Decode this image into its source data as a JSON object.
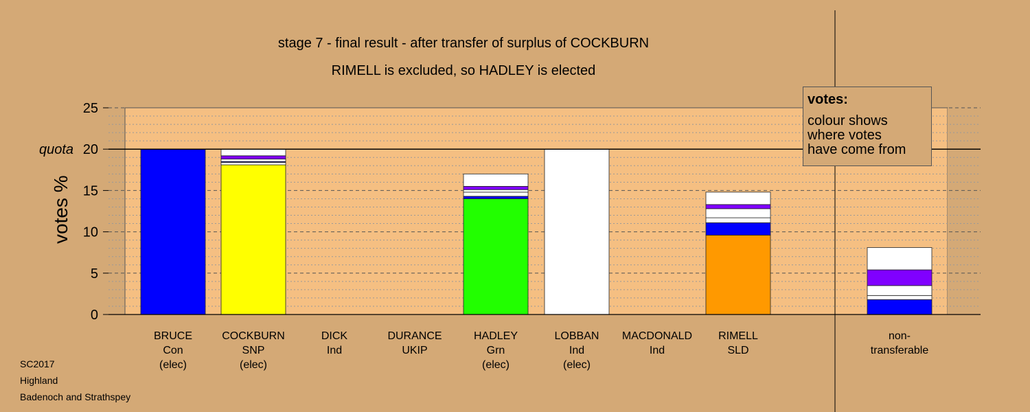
{
  "title_line1": "stage 7 - final result - after transfer of surplus of COCKBURN",
  "title_line2": "RIMELL is excluded, so HADLEY is elected",
  "legend": {
    "title": "votes:",
    "line1": "colour shows",
    "line2": "where votes",
    "line3": "have come from"
  },
  "footer": {
    "line1": "SC2017",
    "line2": "Highland",
    "line3": "Badenoch and Strathspey"
  },
  "chart_data": {
    "type": "bar",
    "stacked": true,
    "ylabel": "votes %",
    "ylim": [
      0,
      25
    ],
    "yticks": [
      "0",
      "5",
      "10",
      "15",
      "20",
      "25"
    ],
    "quota": {
      "label": "quota",
      "value": 20
    },
    "grid": true,
    "categories": [
      {
        "lines": [
          "BRUCE",
          "Con",
          "(elec)"
        ],
        "segments": [
          {
            "color": "#0000ff",
            "value": 20.0
          }
        ]
      },
      {
        "lines": [
          "COCKBURN",
          "SNP",
          "(elec)"
        ],
        "segments": [
          {
            "color": "#ffff00",
            "value": 18.1
          },
          {
            "color": "#ffffff",
            "value": 0.3
          },
          {
            "color": "#0000ff",
            "value": 0.1
          },
          {
            "color": "#ffffff",
            "value": 0.3
          },
          {
            "color": "#8000ff",
            "value": 0.4
          },
          {
            "color": "#ffffff",
            "value": 0.8
          }
        ]
      },
      {
        "lines": [
          "DICK",
          "Ind"
        ],
        "segments": []
      },
      {
        "lines": [
          "DURANCE",
          "UKIP"
        ],
        "segments": []
      },
      {
        "lines": [
          "HADLEY",
          "Grn",
          "(elec)"
        ],
        "segments": [
          {
            "color": "#22ff00",
            "value": 14.0
          },
          {
            "color": "#0000ff",
            "value": 0.3
          },
          {
            "color": "#ffffff",
            "value": 0.5
          },
          {
            "color": "#ffffff",
            "value": 0.3
          },
          {
            "color": "#8000ff",
            "value": 0.4
          },
          {
            "color": "#ffffff",
            "value": 1.5
          }
        ]
      },
      {
        "lines": [
          "LOBBAN",
          "Ind",
          "(elec)"
        ],
        "segments": [
          {
            "color": "#ffffff",
            "value": 20.0
          }
        ]
      },
      {
        "lines": [
          "MACDONALD",
          "Ind"
        ],
        "segments": []
      },
      {
        "lines": [
          "RIMELL",
          "SLD"
        ],
        "segments": [
          {
            "color": "#ff9900",
            "value": 9.6
          },
          {
            "color": "#0000ff",
            "value": 1.5
          },
          {
            "color": "#ffffff",
            "value": 0.6
          },
          {
            "color": "#ffffff",
            "value": 1.1
          },
          {
            "color": "#8000ff",
            "value": 0.5
          },
          {
            "color": "#ffffff",
            "value": 1.5
          }
        ]
      },
      {
        "lines": [
          "non-",
          "transferable"
        ],
        "segments": [
          {
            "color": "#0000ff",
            "value": 1.8
          },
          {
            "color": "#ffffff",
            "value": 0.5
          },
          {
            "color": "#ffffff",
            "value": 1.2
          },
          {
            "color": "#8000ff",
            "value": 1.9
          },
          {
            "color": "#ffffff",
            "value": 2.7
          }
        ]
      }
    ]
  }
}
